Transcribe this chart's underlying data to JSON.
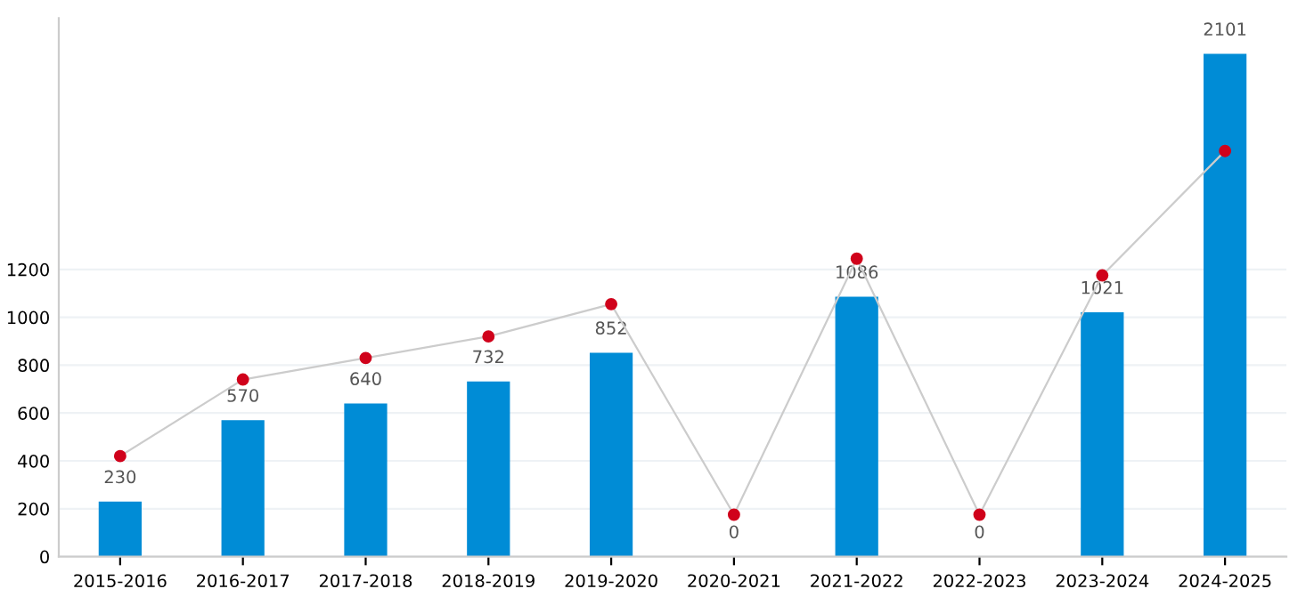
{
  "chart_data": {
    "type": "bar",
    "categories": [
      "2015-2016",
      "2016-2017",
      "2017-2018",
      "2018-2019",
      "2019-2020",
      "2020-2021",
      "2021-2022",
      "2022-2023",
      "2023-2024",
      "2024-2025"
    ],
    "series": [
      {
        "color": "#008cd6",
        "values": [
          230,
          570,
          640,
          732,
          852,
          0,
          1086,
          0,
          1021,
          2101
        ],
        "data_labels": true
      },
      {
        "type": "line",
        "color": "#d0021b",
        "values": [
          420,
          740,
          830,
          920,
          1055,
          175,
          1245,
          175,
          1175,
          1695
        ],
        "marker": "circle",
        "line_style": "solid"
      }
    ],
    "ylim": [
      0,
      2250
    ],
    "yticks": [
      0,
      200,
      400,
      600,
      800,
      1000,
      1200
    ],
    "grid": "y"
  }
}
